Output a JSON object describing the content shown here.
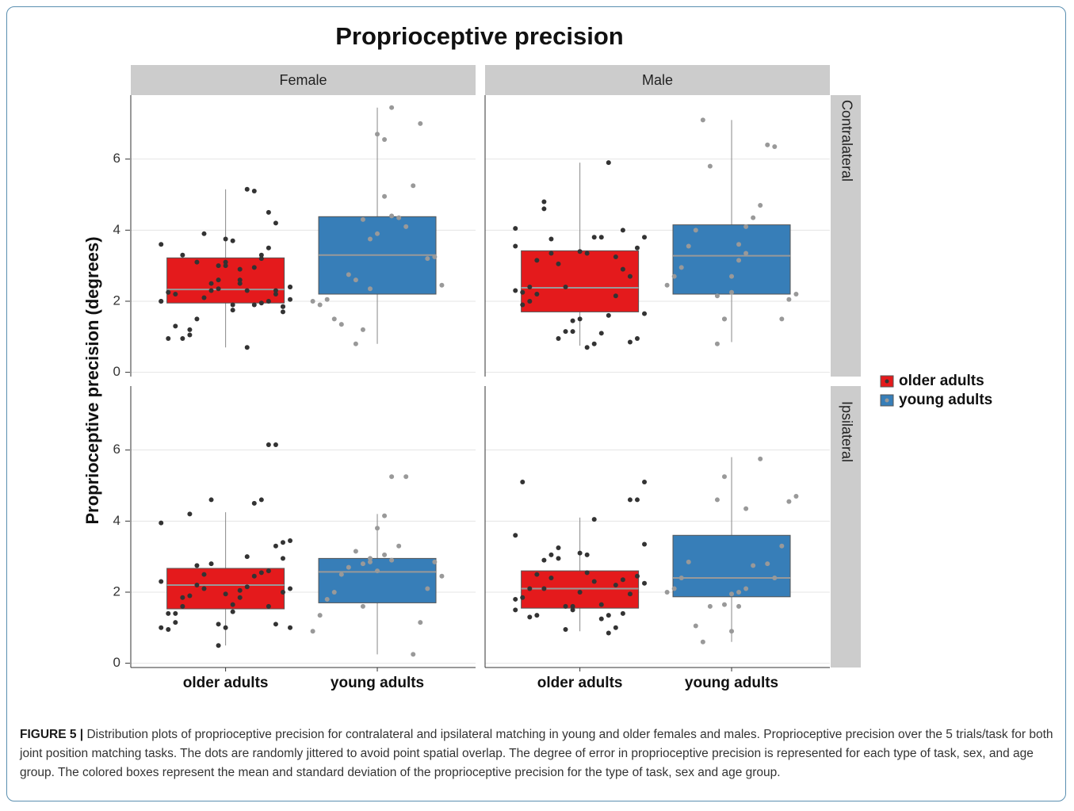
{
  "chart_data": {
    "type": "boxplot",
    "title": "Proprioceptive precision",
    "y_label": "Proprioceptive precision (degrees)",
    "facet_columns": [
      "Female",
      "Male"
    ],
    "facet_rows": [
      "Contralateral",
      "Ipsilateral"
    ],
    "categories": [
      "older adults",
      "young adults"
    ],
    "series": [
      {
        "name": "older adults",
        "color": "#e41a1c",
        "point_color": "#333333"
      },
      {
        "name": "young adults",
        "color": "#377eb8",
        "point_color": "#999999"
      }
    ],
    "ylim": [
      -0.12,
      7.8
    ],
    "yticks": [
      0,
      2,
      4,
      6
    ],
    "grid": true,
    "legend": "right",
    "panels": [
      [
        [
          {
            "whisker_low": 0.7,
            "q1": 1.95,
            "median": 2.33,
            "q3": 3.22,
            "whisker_high": 5.15,
            "points": [
              2.0,
              2.05,
              1.7,
              2.3,
              3.5,
              3.3,
              2.95,
              5.15,
              2.6,
              1.9,
              3.1,
              3.0,
              2.5,
              3.9,
              1.5,
              1.2,
              0.95,
              1.3,
              0.95,
              3.6,
              2.4,
              1.85,
              2.2,
              2.0,
              1.95,
              1.9,
              2.3,
              2.9,
              3.7,
              3.75,
              2.6,
              2.3,
              2.1,
              3.1,
              1.05,
              3.3,
              2.2,
              2.25,
              2.0,
              2.4,
              1.85,
              4.2,
              4.5,
              3.2,
              5.1,
              0.7,
              2.5,
              1.75,
              3.0,
              2.35
            ]
          },
          {
            "whisker_low": 0.8,
            "q1": 2.2,
            "median": 3.3,
            "q3": 4.38,
            "whisker_high": 7.45,
            "points": [
              7.45,
              4.95,
              3.9,
              3.75,
              4.3,
              2.6,
              2.75,
              1.35,
              1.5,
              2.05,
              1.9,
              2.0,
              2.45,
              3.25,
              3.2,
              7.0,
              5.25,
              4.1,
              4.35,
              4.4,
              6.55,
              6.7,
              2.35,
              1.2,
              0.8
            ]
          }
        ],
        [
          {
            "whisker_low": 0.75,
            "q1": 1.7,
            "median": 2.38,
            "q3": 3.42,
            "whisker_high": 5.9,
            "points": [
              4.05,
              3.8,
              3.5,
              2.7,
              2.9,
              2.15,
              1.6,
              1.1,
              0.8,
              0.7,
              1.5,
              1.45,
              2.4,
              3.05,
              3.35,
              4.6,
              3.15,
              2.4,
              2.25,
              2.3,
              1.65,
              0.95,
              0.85,
              4.0,
              3.25,
              5.9,
              3.8,
              3.8,
              3.35,
              3.4,
              1.15,
              1.15,
              0.95,
              3.75,
              4.8,
              2.2,
              2.0,
              1.9,
              3.55
            ]
          },
          {
            "whisker_low": 0.85,
            "q1": 2.2,
            "median": 3.28,
            "q3": 4.15,
            "whisker_high": 7.1,
            "points": [
              3.35,
              3.15,
              2.25,
              1.5,
              0.8,
              5.8,
              7.1,
              4.0,
              3.55,
              2.95,
              2.7,
              2.45,
              2.2,
              2.05,
              1.5,
              6.35,
              6.4,
              4.7,
              4.35,
              4.1,
              3.6,
              2.7,
              1.5,
              2.15
            ]
          }
        ]
      ],
      [
        [
          {
            "whisker_low": 0.5,
            "q1": 1.53,
            "median": 2.2,
            "q3": 2.67,
            "whisker_high": 4.25,
            "points": [
              3.95,
              3.45,
              3.4,
              3.3,
              2.6,
              2.55,
              2.45,
              2.15,
              1.85,
              1.45,
              1.0,
              0.5,
              4.6,
              2.5,
              2.2,
              1.9,
              1.6,
              1.15,
              0.95,
              2.3,
              2.1,
              2.95,
              6.15,
              6.15,
              4.6,
              4.5,
              3.0,
              2.05,
              1.65,
              1.95,
              1.1,
              2.8,
              2.1,
              2.75,
              4.2,
              1.85,
              1.4,
              1.4,
              1.0,
              1.0,
              2.0,
              1.1,
              1.6
            ]
          },
          {
            "whisker_low": 0.25,
            "q1": 1.7,
            "median": 2.57,
            "q3": 2.95,
            "whisker_high": 4.2,
            "points": [
              5.25,
              4.15,
              3.8,
              2.85,
              2.8,
              3.15,
              2.7,
              2.5,
              2.0,
              1.8,
              1.35,
              0.9,
              2.45,
              2.85,
              2.1,
              1.15,
              0.25,
              5.25,
              3.3,
              2.9,
              3.05,
              2.6,
              2.95,
              1.6
            ]
          }
        ],
        [
          {
            "whisker_low": 0.9,
            "q1": 1.55,
            "median": 2.1,
            "q3": 2.6,
            "whisker_high": 4.1,
            "points": [
              3.6,
              3.35,
              2.45,
              1.95,
              1.4,
              1.0,
              0.85,
              1.65,
              2.3,
              2.55,
              2.0,
              1.6,
              0.95,
              3.25,
              3.05,
              2.9,
              2.5,
              2.1,
              1.85,
              1.5,
              5.1,
              4.6,
              4.6,
              2.35,
              2.2,
              1.35,
              1.25,
              4.05,
              3.05,
              3.1,
              1.5,
              1.6,
              2.95,
              2.4,
              2.1,
              1.35,
              1.3,
              5.1,
              1.8,
              2.25
            ]
          },
          {
            "whisker_low": 0.6,
            "q1": 1.87,
            "median": 2.4,
            "q3": 3.6,
            "whisker_high": 5.8,
            "points": [
              4.35,
              2.0,
              1.95,
              5.25,
              4.6,
              1.6,
              0.6,
              1.05,
              2.85,
              2.4,
              2.1,
              2.0,
              4.7,
              4.55,
              3.3,
              2.4,
              2.8,
              5.75,
              2.75,
              2.1,
              1.6,
              0.9,
              1.65
            ]
          }
        ]
      ]
    ]
  },
  "caption": {
    "label": "FIGURE 5 |",
    "text": " Distribution plots of proprioceptive precision for contralateral and ipsilateral matching in young and older females and males. Proprioceptive precision over the 5 trials/task for both joint position matching tasks. The dots are randomly jittered to avoid point spatial overlap. The degree of error in proprioceptive precision is represented for each type of task, sex, and age group. The colored boxes represent the mean and standard deviation of the proprioceptive precision for the type of task, sex and age group."
  }
}
